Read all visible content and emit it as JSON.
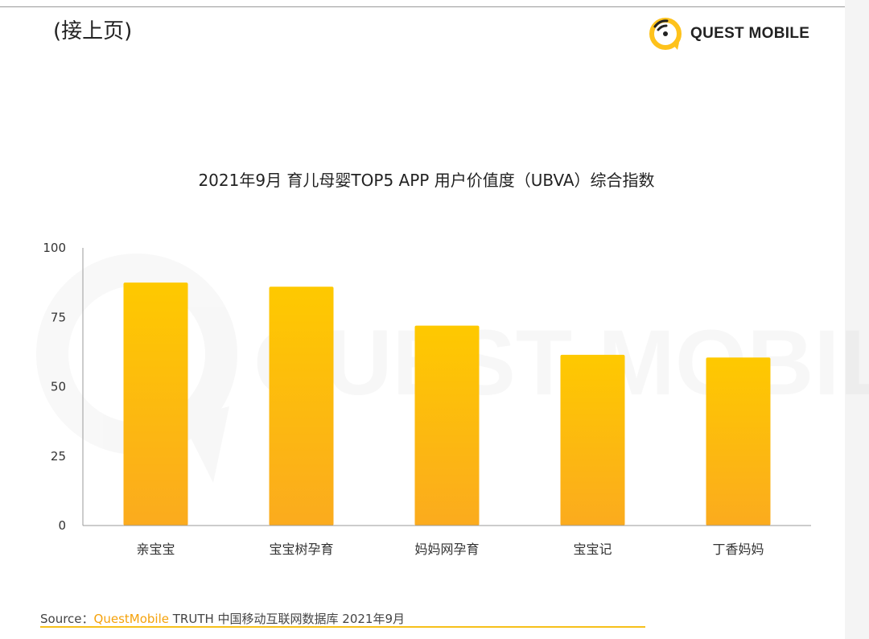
{
  "header": {
    "continuation": "(接上页)",
    "logo_text": "QUEST MOBILE"
  },
  "watermark": {
    "text": "QUEST MOBILE"
  },
  "chart_data": {
    "type": "bar",
    "title": "2021年9月 育儿母婴TOP5 APP 用户价值度（UBVA）综合指数",
    "categories": [
      "亲宝宝",
      "宝宝树孕育",
      "妈妈网孕育",
      "宝宝记",
      "丁香妈妈"
    ],
    "values": [
      87.5,
      86,
      72,
      61.5,
      60.5
    ],
    "yticks": [
      "0",
      "25",
      "50",
      "75",
      "100"
    ],
    "ylim": [
      0,
      100
    ],
    "xlabel": "",
    "ylabel": "",
    "grid": false,
    "colors": {
      "bar_top": "#fec900",
      "bar_bottom": "#fbab1e",
      "axis": "#9a9a9a"
    }
  },
  "footer": {
    "source_label": "Source：",
    "source_brand": "QuestMobile",
    "source_rest": " TRUTH 中国移动互联网数据库 2021年9月"
  }
}
